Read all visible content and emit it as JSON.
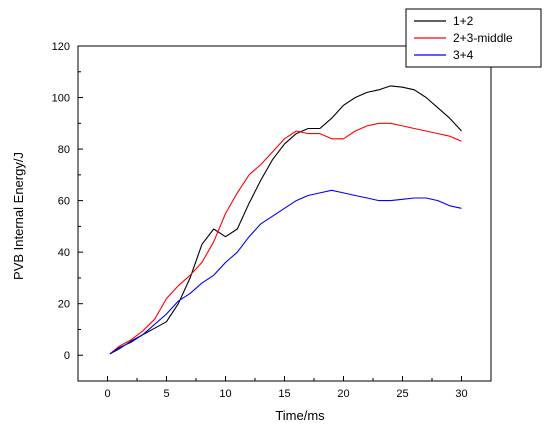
{
  "chart_data": {
    "type": "line",
    "title": "",
    "xlabel": "Time/ms",
    "ylabel": "PVB Internal Energy/J",
    "xlim": [
      -2.5,
      32.5
    ],
    "ylim": [
      -10,
      120
    ],
    "xticks": [
      0,
      5,
      10,
      15,
      20,
      25,
      30
    ],
    "yticks": [
      0,
      20,
      40,
      60,
      80,
      100,
      120
    ],
    "grid": false,
    "legend_position": "top-right",
    "series": [
      {
        "name": "1+2",
        "color": "#000000",
        "points": [
          [
            0.2,
            0.5
          ],
          [
            1,
            2.5
          ],
          [
            2,
            5.5
          ],
          [
            3,
            8
          ],
          [
            4,
            10.5
          ],
          [
            5,
            13
          ],
          [
            6,
            20
          ],
          [
            7,
            30
          ],
          [
            8,
            43
          ],
          [
            9,
            49
          ],
          [
            10,
            46
          ],
          [
            11,
            49
          ],
          [
            12,
            59
          ],
          [
            13,
            68
          ],
          [
            14,
            76
          ],
          [
            15,
            82
          ],
          [
            16,
            86
          ],
          [
            17,
            88
          ],
          [
            18,
            88
          ],
          [
            19,
            92
          ],
          [
            20,
            97
          ],
          [
            21,
            100
          ],
          [
            22,
            102
          ],
          [
            23,
            103
          ],
          [
            24,
            104.5
          ],
          [
            25,
            104
          ],
          [
            26,
            103
          ],
          [
            27,
            100
          ],
          [
            28,
            96
          ],
          [
            29,
            92
          ],
          [
            30,
            87
          ]
        ]
      },
      {
        "name": "2+3-middle",
        "color": "#ff0000",
        "points": [
          [
            0.2,
            0.5
          ],
          [
            1,
            3.5
          ],
          [
            2,
            6
          ],
          [
            3,
            9.5
          ],
          [
            4,
            14
          ],
          [
            5,
            22
          ],
          [
            6,
            27
          ],
          [
            7,
            31
          ],
          [
            8,
            36
          ],
          [
            9,
            44
          ],
          [
            10,
            55
          ],
          [
            11,
            63
          ],
          [
            12,
            70
          ],
          [
            13,
            74
          ],
          [
            14,
            79
          ],
          [
            15,
            84
          ],
          [
            16,
            87
          ],
          [
            17,
            86
          ],
          [
            18,
            86
          ],
          [
            19,
            84
          ],
          [
            20,
            84
          ],
          [
            21,
            87
          ],
          [
            22,
            89
          ],
          [
            23,
            90
          ],
          [
            24,
            90
          ],
          [
            25,
            89
          ],
          [
            26,
            88
          ],
          [
            27,
            87
          ],
          [
            28,
            86
          ],
          [
            29,
            85
          ],
          [
            30,
            83
          ]
        ]
      },
      {
        "name": "3+4",
        "color": "#0000ff",
        "points": [
          [
            0.2,
            0.5
          ],
          [
            1,
            3
          ],
          [
            2,
            5
          ],
          [
            3,
            8
          ],
          [
            4,
            12
          ],
          [
            5,
            16
          ],
          [
            6,
            21
          ],
          [
            7,
            24
          ],
          [
            8,
            28
          ],
          [
            9,
            31
          ],
          [
            10,
            36
          ],
          [
            11,
            40
          ],
          [
            12,
            46
          ],
          [
            13,
            51
          ],
          [
            14,
            54
          ],
          [
            15,
            57
          ],
          [
            16,
            60
          ],
          [
            17,
            62
          ],
          [
            18,
            63
          ],
          [
            19,
            64
          ],
          [
            20,
            63
          ],
          [
            21,
            62
          ],
          [
            22,
            61
          ],
          [
            23,
            60
          ],
          [
            24,
            60
          ],
          [
            25,
            60.5
          ],
          [
            26,
            61
          ],
          [
            27,
            61
          ],
          [
            28,
            60
          ],
          [
            29,
            58
          ],
          [
            30,
            57
          ]
        ]
      }
    ]
  }
}
